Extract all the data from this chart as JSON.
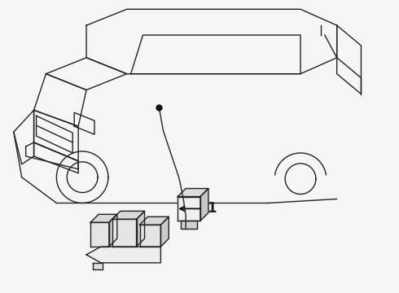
{
  "background_color": "#f5f5f5",
  "line_color": "#222222",
  "line_width": 1.0,
  "label_text": "1",
  "figsize": [
    4.9,
    3.6
  ],
  "dpi": 100,
  "arrow_color": "#111111",
  "dot_color": "#111111",
  "dot_size": 5
}
